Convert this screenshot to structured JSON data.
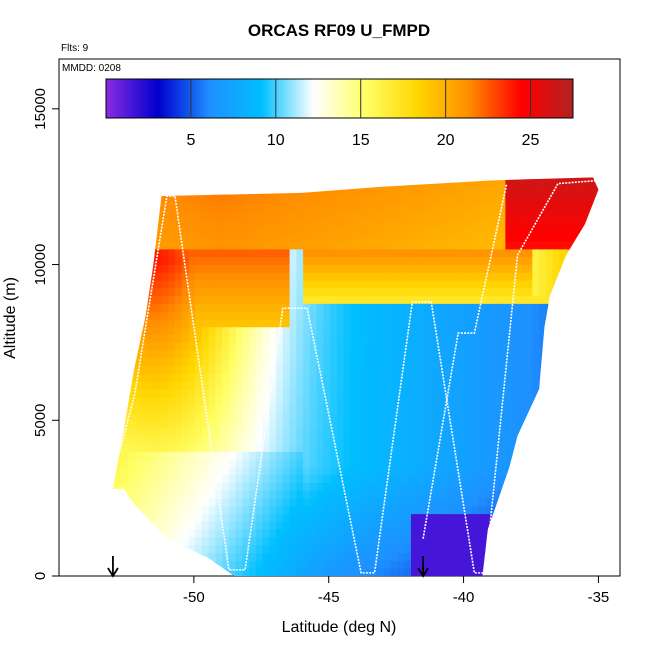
{
  "chart_data": {
    "type": "heatmap",
    "title": "ORCAS RF09 U_FMPD",
    "annotations": {
      "flights": "Flts: 9",
      "date": "MMDD: 0208"
    },
    "xlabel": "Latitude (deg N)",
    "ylabel": "Altitude (m)",
    "xlim": [
      -55,
      -34.2
    ],
    "ylim": [
      0,
      16600
    ],
    "x_ticks": [
      -50,
      -45,
      -40,
      -35
    ],
    "y_ticks": [
      0,
      5000,
      10000,
      15000
    ],
    "colorbar": {
      "range": [
        0,
        27.5
      ],
      "ticks": [
        5,
        10,
        15,
        20,
        25
      ],
      "palette": [
        "#8a2be2",
        "#0000cd",
        "#1e90ff",
        "#00bfff",
        "#ffffff",
        "#ffff66",
        "#ffd700",
        "#ff8c00",
        "#ff0000",
        "#b22222"
      ]
    },
    "field_shape": {
      "bottom_edge": [
        [
          -52.6,
          2800
        ],
        [
          -52.2,
          2300
        ],
        [
          -51,
          1200
        ],
        [
          -49.5,
          600
        ],
        [
          -48.5,
          0
        ],
        [
          -39.3,
          0
        ],
        [
          -39.1,
          1500
        ],
        [
          -38.3,
          3500
        ],
        [
          -38.0,
          4500
        ],
        [
          -37.2,
          6000
        ],
        [
          -37.0,
          8000
        ],
        [
          -36.8,
          9000
        ],
        [
          -36.2,
          10300
        ],
        [
          -35.5,
          11300
        ],
        [
          -35.0,
          12400
        ]
      ],
      "top_edge": [
        [
          -53.0,
          2800
        ],
        [
          -52.6,
          4700
        ],
        [
          -52.2,
          6700
        ],
        [
          -51.8,
          8300
        ],
        [
          -51.5,
          10000
        ],
        [
          -51.2,
          12200
        ],
        [
          -46.0,
          12300
        ],
        [
          -43.0,
          12500
        ],
        [
          -39.0,
          12700
        ],
        [
          -35.2,
          12800
        ]
      ]
    },
    "flight_track": [
      [
        -53.0,
        3200
      ],
      [
        -52.2,
        5800
      ],
      [
        -51.0,
        12200
      ],
      [
        -50.7,
        12200
      ],
      [
        -48.7,
        200
      ],
      [
        -48.1,
        200
      ],
      [
        -46.7,
        8600
      ],
      [
        -45.8,
        8600
      ],
      [
        -43.8,
        100
      ],
      [
        -43.3,
        100
      ],
      [
        -41.9,
        8800
      ],
      [
        -41.2,
        8800
      ],
      [
        -39.6,
        100
      ],
      [
        -39.2,
        100
      ],
      [
        -38.0,
        10300
      ],
      [
        -36.5,
        12600
      ],
      [
        -35.0,
        12700
      ]
    ],
    "flight_track_2": [
      [
        -41.5,
        1200
      ],
      [
        -40.2,
        7800
      ],
      [
        -39.6,
        7800
      ],
      [
        -38.4,
        12600
      ]
    ],
    "arrows": [
      -53.0,
      -41.5
    ]
  }
}
